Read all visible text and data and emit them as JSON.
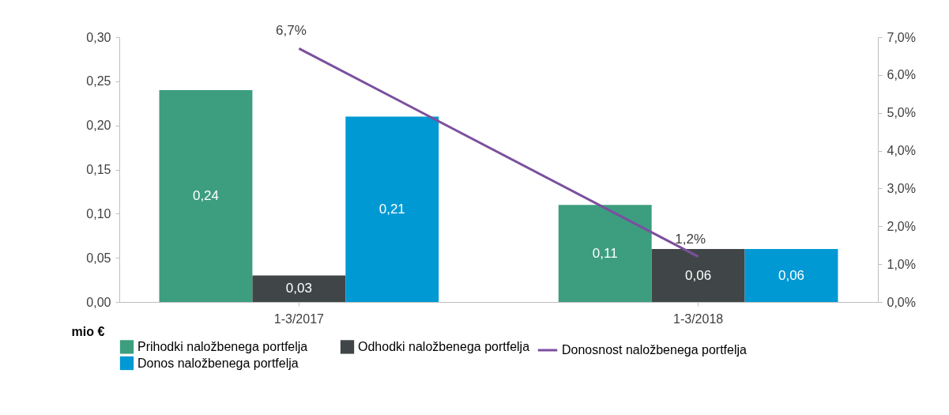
{
  "chart_data": {
    "type": "bar",
    "categories": [
      "1-3/2017",
      "1-3/2018"
    ],
    "series": [
      {
        "name": "Prihodki naložbenega portfelja",
        "color": "#3c9e7f",
        "values": [
          0.24,
          0.11
        ],
        "value_labels": [
          "0,24",
          "0,11"
        ]
      },
      {
        "name": "Odhodki naložbenega portfelja",
        "color": "#404647",
        "values": [
          0.03,
          0.06
        ],
        "value_labels": [
          "0,03",
          "0,06"
        ]
      },
      {
        "name": "Donos naložbenega portfelja",
        "color": "#0099d4",
        "values": [
          0.21,
          0.06
        ],
        "value_labels": [
          "0,21",
          "0,06"
        ]
      },
      {
        "name": "Donosnost naložbenega portfelja",
        "color": "#7b4f9e",
        "values": [
          6.7,
          1.2
        ],
        "value_labels": [
          "6,7%",
          "1,2%"
        ],
        "type": "line",
        "axis": "y2"
      }
    ],
    "ylabel": "mio €",
    "ylim": [
      0,
      0.3
    ],
    "yticks": [
      {
        "value": 0,
        "label": "0,00"
      },
      {
        "value": 0.05,
        "label": "0,05"
      },
      {
        "value": 0.1,
        "label": "0,10"
      },
      {
        "value": 0.15,
        "label": "0,15"
      },
      {
        "value": 0.2,
        "label": "0,20"
      },
      {
        "value": 0.25,
        "label": "0,25"
      },
      {
        "value": 0.3,
        "label": "0,30"
      }
    ],
    "y2lim": [
      0,
      7
    ],
    "y2ticks": [
      {
        "value": 0,
        "label": "0,0%"
      },
      {
        "value": 1,
        "label": "1,0%"
      },
      {
        "value": 2,
        "label": "2,0%"
      },
      {
        "value": 3,
        "label": "3,0%"
      },
      {
        "value": 4,
        "label": "4,0%"
      },
      {
        "value": 5,
        "label": "5,0%"
      },
      {
        "value": 6,
        "label": "6,0%"
      },
      {
        "value": 7,
        "label": "7,0%"
      }
    ],
    "grid": false,
    "legend": "bottom"
  }
}
